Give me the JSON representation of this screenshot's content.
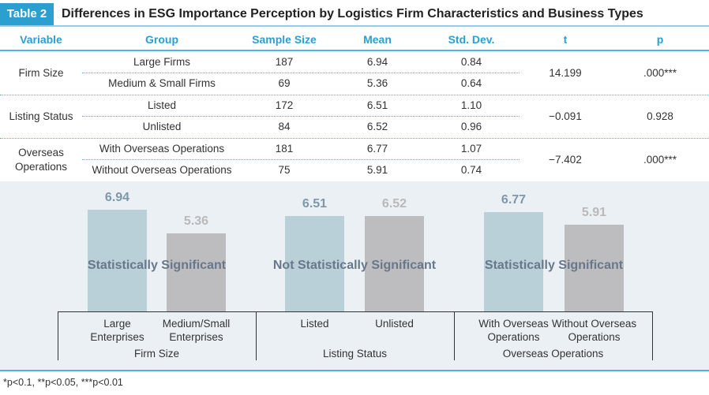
{
  "table_label": "Table 2",
  "title": "Differences in ESG Importance Perception by Logistics Firm Characteristics and Business Types",
  "headers": [
    "Variable",
    "Group",
    "Sample Size",
    "Mean",
    "Std. Dev.",
    "t",
    "p"
  ],
  "variables": [
    {
      "name": "Firm Size",
      "t": "14.199",
      "p": ".000***",
      "groups": [
        {
          "group": "Large Firms",
          "n": "187",
          "mean": "6.94",
          "sd": "0.84"
        },
        {
          "group": "Medium & Small Firms",
          "n": "69",
          "mean": "5.36",
          "sd": "0.64"
        }
      ]
    },
    {
      "name": "Listing Status",
      "t": "−0.091",
      "p": "0.928",
      "groups": [
        {
          "group": "Listed",
          "n": "172",
          "mean": "6.51",
          "sd": "1.10"
        },
        {
          "group": "Unlisted",
          "n": "84",
          "mean": "6.52",
          "sd": "0.96"
        }
      ]
    },
    {
      "name": "Overseas Operations",
      "name_lines": [
        "Overseas",
        "Operations"
      ],
      "t": "−7.402",
      "p": ".000***",
      "groups": [
        {
          "group": "With Overseas Operations",
          "n": "181",
          "mean": "6.77",
          "sd": "1.07"
        },
        {
          "group": "Without Overseas Operations",
          "n": "75",
          "mean": "5.91",
          "sd": "0.74"
        }
      ]
    }
  ],
  "chart_data": {
    "type": "bar",
    "groups": [
      {
        "name": "Firm Size",
        "significance": "Statistically Significant",
        "categories": [
          "Large Enterprises",
          "Medium/Small Enterprises"
        ],
        "cat_lines": [
          [
            "Large",
            "Enterprises"
          ],
          [
            "Medium/Small",
            "Enterprises"
          ]
        ],
        "values": [
          6.94,
          5.36
        ]
      },
      {
        "name": "Listing Status",
        "significance": "Not Statistically Significant",
        "categories": [
          "Listed",
          "Unlisted"
        ],
        "cat_lines": [
          [
            "Listed",
            ""
          ],
          [
            "Unlisted",
            ""
          ]
        ],
        "values": [
          6.51,
          6.52
        ]
      },
      {
        "name": "Overseas Operations",
        "significance": "Statistically Significant",
        "categories": [
          "With Overseas Operations",
          "Without Overseas Operations"
        ],
        "cat_lines": [
          [
            "With Overseas",
            "Operations"
          ],
          [
            "Without Overseas",
            "Operations"
          ]
        ],
        "values": [
          6.77,
          5.91
        ]
      }
    ],
    "ylim": [
      0,
      7
    ],
    "colors": {
      "first": "#b9d0d8",
      "second": "#bdbdbf",
      "first_label": "#7f98a8",
      "second_label": "#b9b9b9"
    }
  },
  "footnote": "*p<0.1, **p<0.05, ***p<0.01"
}
